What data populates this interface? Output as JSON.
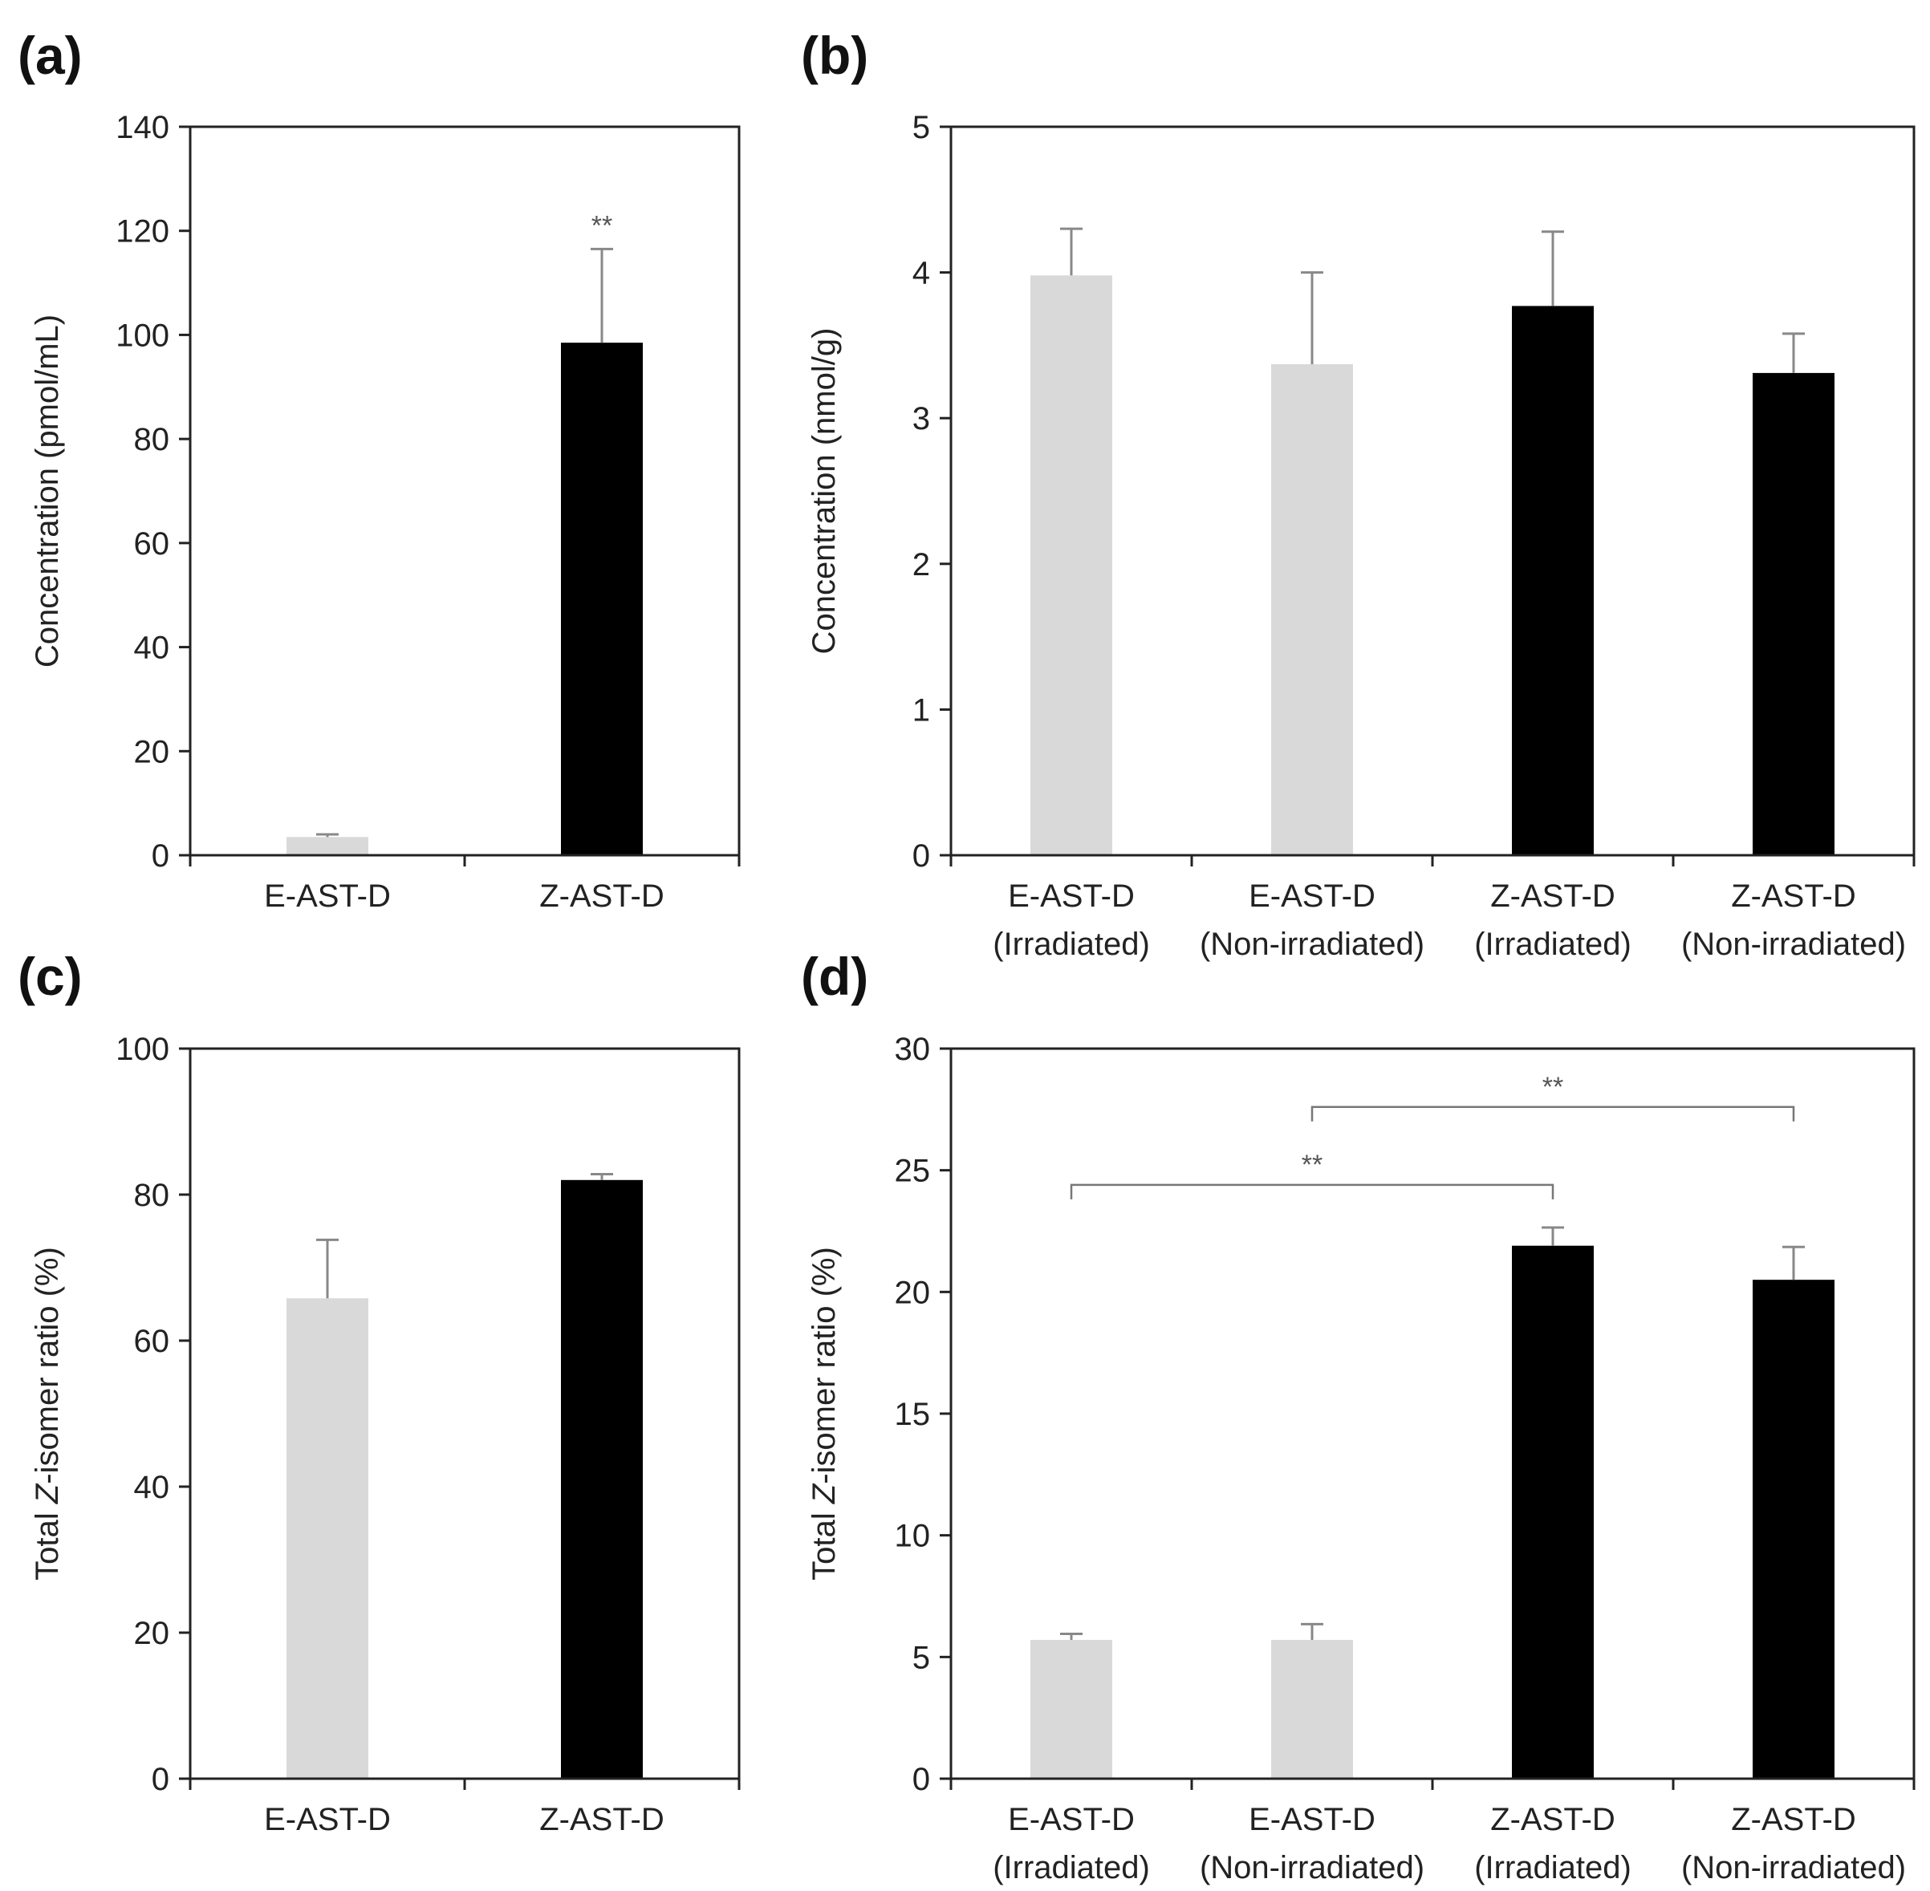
{
  "chart_data": [
    {
      "panel": "(a)",
      "type": "bar",
      "categories": [
        [
          "E-AST-D"
        ],
        [
          "Z-AST-D"
        ]
      ],
      "values": [
        3.5,
        98.5
      ],
      "errors": [
        0.5,
        18
      ],
      "colors": [
        "#d9d9d9",
        "#000000"
      ],
      "ylabel": "Concentration (pmol/mL)",
      "ylim": [
        0,
        140
      ],
      "yticks": [
        0,
        20,
        40,
        60,
        80,
        100,
        120,
        140
      ],
      "annotations": [
        {
          "text": "**",
          "bar": 1
        }
      ]
    },
    {
      "panel": "(b)",
      "type": "bar",
      "categories": [
        [
          "E-AST-D",
          "(Irradiated)"
        ],
        [
          "E-AST-D",
          "(Non-irradiated)"
        ],
        [
          "Z-AST-D",
          "(Irradiated)"
        ],
        [
          "Z-AST-D",
          "(Non-irradiated)"
        ]
      ],
      "values": [
        3.98,
        3.37,
        3.77,
        3.31
      ],
      "errors": [
        0.32,
        0.63,
        0.51,
        0.27
      ],
      "colors": [
        "#d9d9d9",
        "#d9d9d9",
        "#000000",
        "#000000"
      ],
      "ylabel": "Concentration (nmol/g)",
      "ylim": [
        0,
        5
      ],
      "yticks": [
        0,
        1,
        2,
        3,
        4,
        5
      ],
      "annotations": []
    },
    {
      "panel": "(c)",
      "type": "bar",
      "categories": [
        [
          "E-AST-D"
        ],
        [
          "Z-AST-D"
        ]
      ],
      "values": [
        65.8,
        82
      ],
      "errors": [
        8,
        0.8
      ],
      "colors": [
        "#d9d9d9",
        "#000000"
      ],
      "ylabel_parts": [
        "Total ",
        "Z",
        "-isomer ratio (%)"
      ],
      "ylim": [
        0,
        100
      ],
      "yticks": [
        0,
        20,
        40,
        60,
        80,
        100
      ],
      "annotations": []
    },
    {
      "panel": "(d)",
      "type": "bar",
      "categories": [
        [
          "E-AST-D",
          "(Irradiated)"
        ],
        [
          "E-AST-D",
          "(Non-irradiated)"
        ],
        [
          "Z-AST-D",
          "(Irradiated)"
        ],
        [
          "Z-AST-D",
          "(Non-irradiated)"
        ]
      ],
      "values": [
        5.7,
        5.7,
        21.9,
        20.5
      ],
      "errors": [
        0.25,
        0.65,
        0.75,
        1.35
      ],
      "colors": [
        "#d9d9d9",
        "#d9d9d9",
        "#000000",
        "#000000"
      ],
      "ylabel_parts": [
        "Total ",
        "Z",
        "-isomer ratio (%)"
      ],
      "ylim": [
        0,
        30
      ],
      "yticks": [
        0,
        5,
        10,
        15,
        20,
        25,
        30
      ],
      "annotations": [],
      "brackets": [
        {
          "from": 0,
          "to": 2,
          "y": 24.4,
          "text": "**"
        },
        {
          "from": 1,
          "to": 3,
          "y": 27.6,
          "text": "**"
        }
      ]
    }
  ]
}
